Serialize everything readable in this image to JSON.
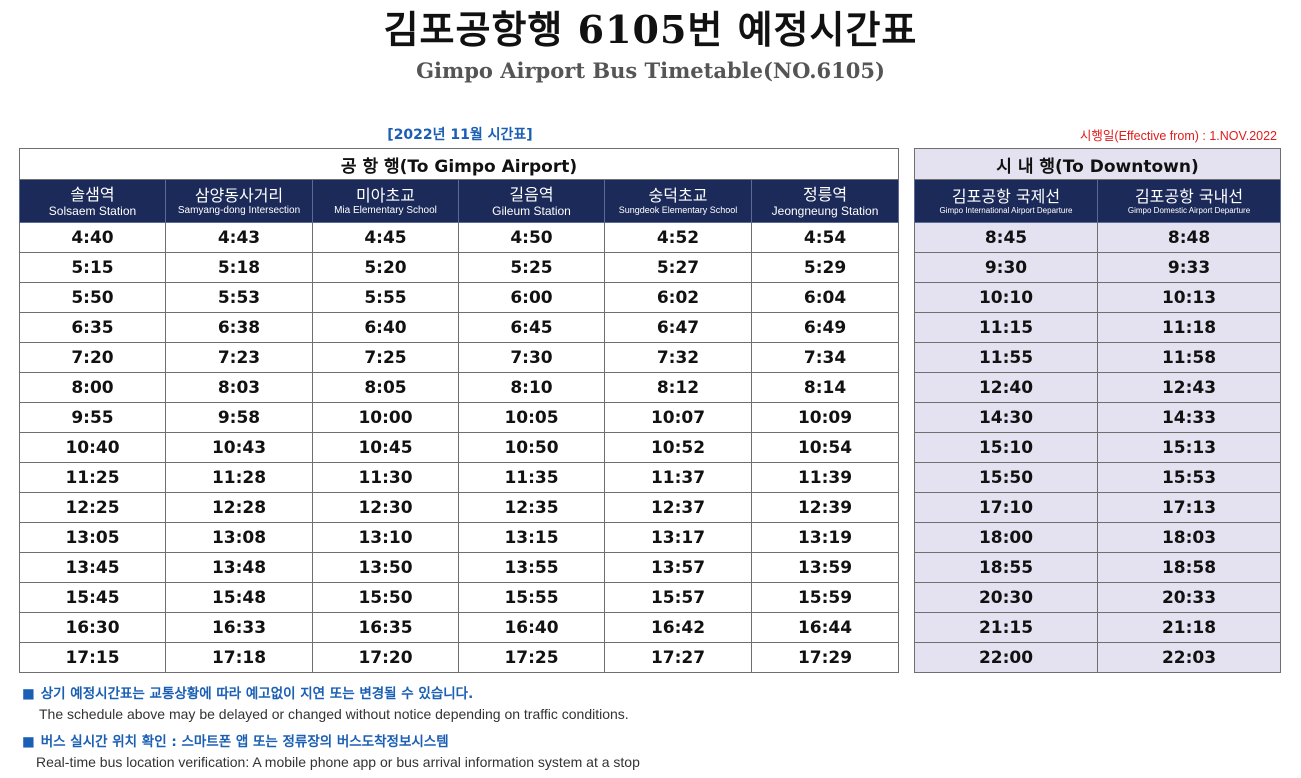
{
  "title": {
    "korean": "김포공항행 6105번 예정시간표",
    "english": "Gimpo Airport Bus Timetable(NO.6105)"
  },
  "month_label": "[2022년 11월 시간표]",
  "effective": "시행일(Effective from) : 1.NOV.2022",
  "airport": {
    "section_title": "공 항 행(To Gimpo Airport)",
    "stations": [
      {
        "ko": "솔샘역",
        "en": "Solsaem Station"
      },
      {
        "ko": "삼양동사거리",
        "en": "Samyang-dong Intersection"
      },
      {
        "ko": "미아초교",
        "en": "Mia Elementary School"
      },
      {
        "ko": "길음역",
        "en": "Gileum Station"
      },
      {
        "ko": "숭덕초교",
        "en": "Sungdeok Elementary School"
      },
      {
        "ko": "정릉역",
        "en": "Jeongneung Station"
      }
    ],
    "rows": [
      [
        "4:40",
        "4:43",
        "4:45",
        "4:50",
        "4:52",
        "4:54"
      ],
      [
        "5:15",
        "5:18",
        "5:20",
        "5:25",
        "5:27",
        "5:29"
      ],
      [
        "5:50",
        "5:53",
        "5:55",
        "6:00",
        "6:02",
        "6:04"
      ],
      [
        "6:35",
        "6:38",
        "6:40",
        "6:45",
        "6:47",
        "6:49"
      ],
      [
        "7:20",
        "7:23",
        "7:25",
        "7:30",
        "7:32",
        "7:34"
      ],
      [
        "8:00",
        "8:03",
        "8:05",
        "8:10",
        "8:12",
        "8:14"
      ],
      [
        "9:55",
        "9:58",
        "10:00",
        "10:05",
        "10:07",
        "10:09"
      ],
      [
        "10:40",
        "10:43",
        "10:45",
        "10:50",
        "10:52",
        "10:54"
      ],
      [
        "11:25",
        "11:28",
        "11:30",
        "11:35",
        "11:37",
        "11:39"
      ],
      [
        "12:25",
        "12:28",
        "12:30",
        "12:35",
        "12:37",
        "12:39"
      ],
      [
        "13:05",
        "13:08",
        "13:10",
        "13:15",
        "13:17",
        "13:19"
      ],
      [
        "13:45",
        "13:48",
        "13:50",
        "13:55",
        "13:57",
        "13:59"
      ],
      [
        "15:45",
        "15:48",
        "15:50",
        "15:55",
        "15:57",
        "15:59"
      ],
      [
        "16:30",
        "16:33",
        "16:35",
        "16:40",
        "16:42",
        "16:44"
      ],
      [
        "17:15",
        "17:18",
        "17:20",
        "17:25",
        "17:27",
        "17:29"
      ]
    ]
  },
  "downtown": {
    "section_title": "시 내 행(To Downtown)",
    "stations": [
      {
        "ko": "김포공항 국제선",
        "en": "Gimpo International Airport Departure"
      },
      {
        "ko": "김포공항 국내선",
        "en": "Gimpo Domestic Airport Departure"
      }
    ],
    "rows": [
      [
        "8:45",
        "8:48"
      ],
      [
        "9:30",
        "9:33"
      ],
      [
        "10:10",
        "10:13"
      ],
      [
        "11:15",
        "11:18"
      ],
      [
        "11:55",
        "11:58"
      ],
      [
        "12:40",
        "12:43"
      ],
      [
        "14:30",
        "14:33"
      ],
      [
        "15:10",
        "15:13"
      ],
      [
        "15:50",
        "15:53"
      ],
      [
        "17:10",
        "17:13"
      ],
      [
        "18:00",
        "18:03"
      ],
      [
        "18:55",
        "18:58"
      ],
      [
        "20:30",
        "20:33"
      ],
      [
        "21:15",
        "21:18"
      ],
      [
        "22:00",
        "22:03"
      ]
    ]
  },
  "notes": [
    {
      "bullet": "■",
      "ko": "상기 예정시간표는 교통상황에 따라 예고없이 지연 또는 변경될 수 있습니다.",
      "en": "The schedule above may be delayed or changed without notice depending on traffic conditions."
    },
    {
      "bullet": "■",
      "ko": "버스 실시간 위치 확인 : 스마트폰 앱 또는 정류장의 버스도착정보시스템",
      "en": "Real-time bus location verification: A mobile phone app or bus arrival information system at a stop"
    }
  ],
  "colors": {
    "header_bg": "#1b2a59",
    "downtown_bg": "#e4e2f0",
    "note_blue": "#1a5fb4",
    "effective_red": "#e01b1b"
  }
}
